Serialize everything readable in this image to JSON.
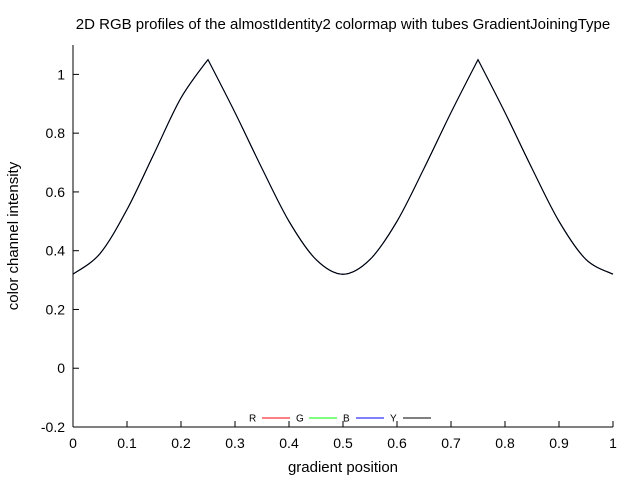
{
  "chart_data": {
    "type": "line",
    "title": "2D RGB profiles of the almostIdentity2 colormap with tubes GradientJoiningType",
    "xlabel": "gradient position",
    "ylabel": "color channel intensity",
    "xlim": [
      0,
      1
    ],
    "ylim": [
      -0.2,
      1.1
    ],
    "x_ticks": [
      "0",
      "0.1",
      "0.2",
      "0.3",
      "0.4",
      "0.5",
      "0.6",
      "0.7",
      "0.8",
      "0.9",
      "1"
    ],
    "y_ticks": [
      "-0.2",
      "0",
      "0.2",
      "0.4",
      "0.6",
      "0.8",
      "1"
    ],
    "grid": false,
    "legend_position": "bottom-center",
    "colors": {
      "R": "#ff0000",
      "G": "#00ff00",
      "B": "#0000ff",
      "Y": "#000000",
      "axis": "#000000"
    },
    "series": [
      {
        "name": "R",
        "x": [
          0,
          0.05,
          0.1,
          0.15,
          0.2,
          0.25,
          0.3,
          0.35,
          0.4,
          0.45,
          0.5,
          0.55,
          0.6,
          0.65,
          0.7,
          0.75,
          0.8,
          0.85,
          0.9,
          0.95,
          1
        ],
        "values": [
          0.32,
          0.39,
          0.54,
          0.73,
          0.92,
          1.05,
          0.87,
          0.68,
          0.5,
          0.37,
          0.32,
          0.37,
          0.5,
          0.68,
          0.87,
          1.05,
          0.87,
          0.68,
          0.5,
          0.37,
          0.32
        ]
      },
      {
        "name": "G",
        "x": [
          0,
          0.05,
          0.1,
          0.15,
          0.2,
          0.25,
          0.3,
          0.35,
          0.4,
          0.45,
          0.5,
          0.55,
          0.6,
          0.65,
          0.7,
          0.75,
          0.8,
          0.85,
          0.9,
          0.95,
          1
        ],
        "values": [
          0.32,
          0.39,
          0.54,
          0.73,
          0.92,
          1.05,
          0.87,
          0.68,
          0.5,
          0.37,
          0.32,
          0.37,
          0.5,
          0.68,
          0.87,
          1.05,
          0.87,
          0.68,
          0.5,
          0.37,
          0.32
        ]
      },
      {
        "name": "B",
        "x": [
          0,
          0.05,
          0.1,
          0.15,
          0.2,
          0.25,
          0.3,
          0.35,
          0.4,
          0.45,
          0.5,
          0.55,
          0.6,
          0.65,
          0.7,
          0.75,
          0.8,
          0.85,
          0.9,
          0.95,
          1
        ],
        "values": [
          0.32,
          0.39,
          0.54,
          0.73,
          0.92,
          1.05,
          0.87,
          0.68,
          0.5,
          0.37,
          0.32,
          0.37,
          0.5,
          0.68,
          0.87,
          1.05,
          0.87,
          0.68,
          0.5,
          0.37,
          0.32
        ]
      },
      {
        "name": "Y",
        "x": [
          0,
          0.05,
          0.1,
          0.15,
          0.2,
          0.25,
          0.3,
          0.35,
          0.4,
          0.45,
          0.5,
          0.55,
          0.6,
          0.65,
          0.7,
          0.75,
          0.8,
          0.85,
          0.9,
          0.95,
          1
        ],
        "values": [
          0.32,
          0.39,
          0.54,
          0.73,
          0.92,
          1.05,
          0.87,
          0.68,
          0.5,
          0.37,
          0.32,
          0.37,
          0.5,
          0.68,
          0.87,
          1.05,
          0.87,
          0.68,
          0.5,
          0.37,
          0.32
        ]
      }
    ]
  }
}
